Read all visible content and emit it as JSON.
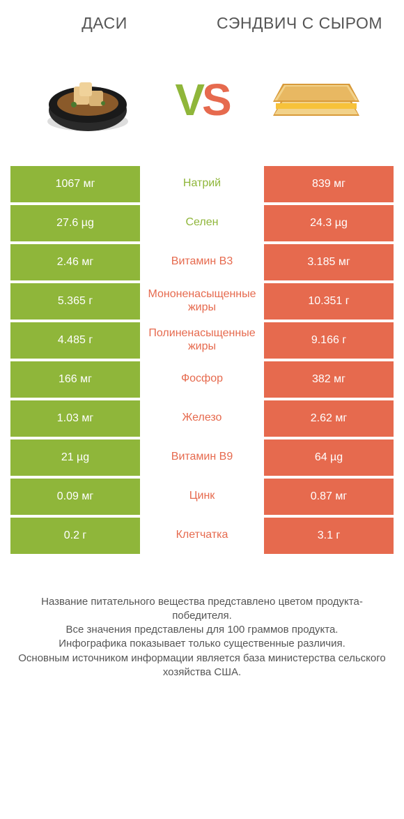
{
  "header": {
    "left_title": "ДАСИ",
    "right_title": "СЭНДВИЧ С СЫРОМ"
  },
  "vs": {
    "v": "V",
    "s": "S"
  },
  "colors": {
    "left": "#8fb63a",
    "right": "#e66a4e",
    "mid_default": "#777777",
    "text": "#555555",
    "row_bg_odd": "#ffffff",
    "row_bg_even": "#ffffff"
  },
  "rows": [
    {
      "label": "Натрий",
      "left": "1067 мг",
      "right": "839 мг",
      "winner": "left"
    },
    {
      "label": "Селен",
      "left": "27.6 µg",
      "right": "24.3 µg",
      "winner": "left"
    },
    {
      "label": "Витамин B3",
      "left": "2.46 мг",
      "right": "3.185 мг",
      "winner": "right"
    },
    {
      "label": "Мононенасыщенные жиры",
      "left": "5.365 г",
      "right": "10.351 г",
      "winner": "right"
    },
    {
      "label": "Полиненасыщенные жиры",
      "left": "4.485 г",
      "right": "9.166 г",
      "winner": "right"
    },
    {
      "label": "Фосфор",
      "left": "166 мг",
      "right": "382 мг",
      "winner": "right"
    },
    {
      "label": "Железо",
      "left": "1.03 мг",
      "right": "2.62 мг",
      "winner": "right"
    },
    {
      "label": "Витамин B9",
      "left": "21 µg",
      "right": "64 µg",
      "winner": "right"
    },
    {
      "label": "Цинк",
      "left": "0.09 мг",
      "right": "0.87 мг",
      "winner": "right"
    },
    {
      "label": "Клетчатка",
      "left": "0.2 г",
      "right": "3.1 г",
      "winner": "right"
    }
  ],
  "footer_lines": [
    "Название питательного вещества представлено цветом продукта-победителя.",
    "Все значения представлены для 100 граммов продукта.",
    "Инфографика показывает только существенные различия.",
    "Основным источником информации является база министерства сельского хозяйства США."
  ],
  "food_icons": {
    "left_name": "dashi-bowl-icon",
    "right_name": "cheese-sandwich-icon"
  }
}
